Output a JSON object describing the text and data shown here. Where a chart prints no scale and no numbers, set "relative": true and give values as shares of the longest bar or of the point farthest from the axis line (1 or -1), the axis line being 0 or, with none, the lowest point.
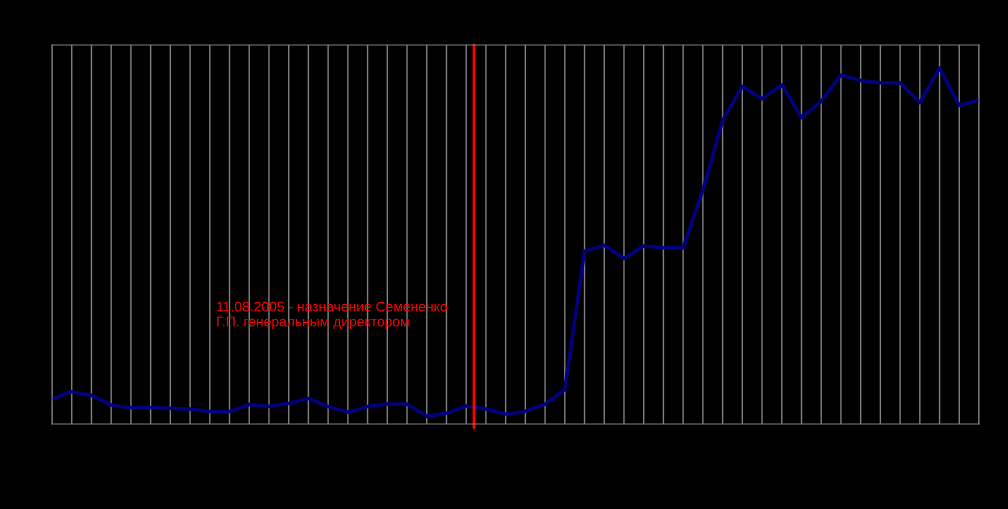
{
  "chart_data": {
    "type": "line",
    "relative": true,
    "categories": [
      null,
      null,
      null,
      null,
      null,
      null,
      null,
      null,
      null,
      null,
      null,
      null,
      null,
      null,
      null,
      null,
      null,
      null,
      null,
      null,
      null,
      null,
      null,
      null,
      null,
      null,
      null,
      null,
      null,
      null,
      null,
      null,
      null,
      null,
      null,
      null,
      null,
      null,
      null,
      null,
      null,
      null,
      null,
      null,
      null,
      null,
      null,
      null
    ],
    "series": [
      {
        "color": "#000080",
        "values": [
          0.07,
          0.091,
          0.081,
          0.053,
          0.046,
          0.046,
          0.044,
          0.042,
          0.035,
          0.035,
          0.055,
          0.049,
          0.058,
          0.072,
          0.049,
          0.033,
          0.049,
          0.056,
          0.056,
          0.022,
          0.03,
          0.051,
          0.042,
          0.028,
          0.036,
          0.056,
          0.097,
          0.486,
          0.502,
          0.465,
          0.5,
          0.495,
          0.495,
          0.657,
          0.853,
          0.949,
          0.914,
          0.953,
          0.861,
          0.907,
          0.981,
          0.965,
          0.959,
          0.959,
          0.903,
          1,
          0.895,
          0.911
        ]
      }
    ],
    "annotations": [
      "11.08.2005 - назначение Семененко\nГ.П. генеральным директором"
    ],
    "grid": "x",
    "marker": "none",
    "line_style": "solid"
  }
}
